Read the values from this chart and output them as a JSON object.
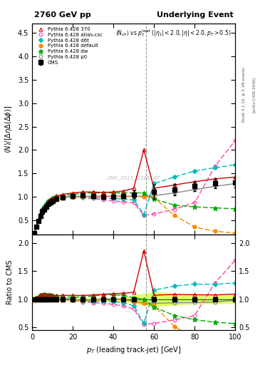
{
  "title_left": "2760 GeV pp",
  "title_right": "Underlying Event",
  "watermark": "CMS_2015_I1385107",
  "xlim": [
    0,
    100
  ],
  "ylim_main": [
    0.19,
    4.7
  ],
  "ylim_ratio": [
    0.45,
    2.15
  ],
  "cms_x": [
    1,
    2,
    3,
    4,
    5,
    6,
    7,
    8,
    9,
    10,
    12,
    15,
    20,
    25,
    30,
    35,
    40,
    45,
    50,
    60,
    70,
    80,
    90,
    100
  ],
  "cms_y": [
    0.22,
    0.35,
    0.48,
    0.58,
    0.67,
    0.73,
    0.79,
    0.84,
    0.88,
    0.91,
    0.95,
    0.98,
    1.01,
    1.03,
    1.02,
    1.0,
    1.0,
    1.01,
    1.05,
    1.1,
    1.15,
    1.22,
    1.28,
    1.3
  ],
  "cms_yerr": [
    0.02,
    0.02,
    0.02,
    0.02,
    0.02,
    0.02,
    0.02,
    0.02,
    0.02,
    0.02,
    0.02,
    0.03,
    0.03,
    0.03,
    0.03,
    0.03,
    0.03,
    0.03,
    0.08,
    0.15,
    0.12,
    0.1,
    0.1,
    0.1
  ],
  "p370_x": [
    1,
    2,
    3,
    4,
    5,
    6,
    7,
    8,
    9,
    10,
    12,
    15,
    20,
    25,
    30,
    35,
    40,
    45,
    50,
    55,
    60,
    70,
    80,
    90,
    100
  ],
  "p370_y": [
    0.22,
    0.36,
    0.5,
    0.62,
    0.72,
    0.79,
    0.85,
    0.9,
    0.94,
    0.97,
    1.01,
    1.05,
    1.08,
    1.1,
    1.1,
    1.09,
    1.1,
    1.12,
    1.18,
    2.0,
    1.18,
    1.25,
    1.32,
    1.38,
    1.42
  ],
  "p370_color": "#cc0000",
  "patlas_x": [
    1,
    2,
    3,
    4,
    5,
    6,
    7,
    8,
    9,
    10,
    12,
    15,
    20,
    25,
    30,
    35,
    40,
    45,
    50,
    55,
    60,
    70,
    80,
    90,
    100
  ],
  "patlas_y": [
    0.22,
    0.36,
    0.5,
    0.62,
    0.72,
    0.79,
    0.85,
    0.9,
    0.94,
    0.97,
    0.99,
    1.0,
    1.0,
    0.98,
    0.96,
    0.93,
    0.91,
    0.89,
    0.87,
    0.6,
    0.63,
    0.73,
    0.87,
    1.65,
    2.2
  ],
  "patlas_color": "#ff44aa",
  "pd6t_x": [
    1,
    2,
    3,
    4,
    5,
    6,
    7,
    8,
    9,
    10,
    12,
    15,
    20,
    25,
    30,
    35,
    40,
    45,
    50,
    55,
    60,
    70,
    80,
    90,
    100
  ],
  "pd6t_y": [
    0.22,
    0.36,
    0.5,
    0.62,
    0.72,
    0.79,
    0.85,
    0.9,
    0.94,
    0.97,
    0.99,
    1.0,
    1.0,
    0.99,
    0.98,
    0.97,
    0.96,
    0.95,
    0.93,
    0.62,
    1.28,
    1.42,
    1.55,
    1.62,
    1.68
  ],
  "pd6t_color": "#00bbbb",
  "pdef_x": [
    1,
    2,
    3,
    4,
    5,
    6,
    7,
    8,
    9,
    10,
    12,
    15,
    20,
    25,
    30,
    35,
    40,
    45,
    50,
    55,
    60,
    70,
    80,
    90,
    100
  ],
  "pdef_y": [
    0.22,
    0.35,
    0.48,
    0.59,
    0.68,
    0.74,
    0.8,
    0.84,
    0.88,
    0.91,
    0.94,
    0.97,
    0.99,
    1.0,
    1.0,
    1.0,
    1.0,
    1.0,
    1.0,
    1.0,
    0.98,
    0.6,
    0.35,
    0.26,
    0.22
  ],
  "pdef_color": "#ff8800",
  "pdw_x": [
    1,
    2,
    3,
    4,
    5,
    6,
    7,
    8,
    9,
    10,
    12,
    15,
    20,
    25,
    30,
    35,
    40,
    45,
    50,
    55,
    60,
    70,
    80,
    90,
    100
  ],
  "pdw_y": [
    0.22,
    0.36,
    0.5,
    0.62,
    0.72,
    0.79,
    0.85,
    0.9,
    0.94,
    0.97,
    1.01,
    1.02,
    1.05,
    1.07,
    1.08,
    1.08,
    1.08,
    1.08,
    1.08,
    1.08,
    0.95,
    0.82,
    0.78,
    0.76,
    0.74
  ],
  "pdw_color": "#00aa00",
  "pp0_x": [
    1,
    2,
    3,
    4,
    5,
    6,
    7,
    8,
    9,
    10,
    12,
    15,
    20,
    25,
    30,
    35,
    40,
    45,
    50,
    55,
    60,
    70,
    80,
    90,
    100
  ],
  "pp0_y": [
    0.22,
    0.36,
    0.5,
    0.62,
    0.72,
    0.79,
    0.85,
    0.9,
    0.94,
    0.97,
    1.0,
    1.0,
    1.01,
    1.01,
    1.01,
    1.01,
    1.01,
    1.01,
    1.01,
    1.01,
    1.02,
    1.08,
    1.15,
    1.22,
    1.28
  ],
  "pp0_color": "#888888",
  "band_color": "#ccff00",
  "band_alpha": 0.6,
  "vline_x": 56,
  "xticks": [
    0,
    20,
    40,
    60,
    80,
    100
  ],
  "yticks_main": [
    0.5,
    1.0,
    1.5,
    2.0,
    2.5,
    3.0,
    3.5,
    4.0,
    4.5
  ],
  "yticks_ratio": [
    0.5,
    1.0,
    1.5,
    2.0
  ]
}
